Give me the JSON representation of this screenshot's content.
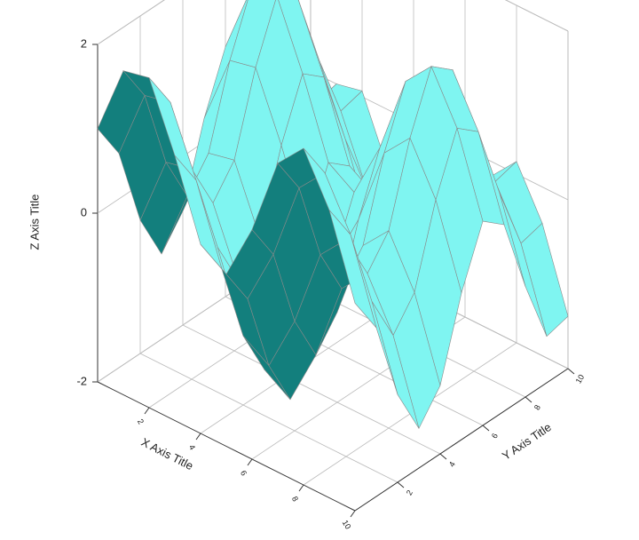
{
  "chart_data": {
    "type": "surface",
    "x_axis_title": "X Axis Title",
    "y_axis_title": "Y Axis Title",
    "z_axis_title": "Z Axis Title",
    "x": [
      0,
      1,
      2,
      3,
      4,
      5,
      6,
      7,
      8,
      9,
      10
    ],
    "y": [
      0,
      1,
      2,
      3,
      4,
      5,
      6,
      7,
      8,
      9,
      10
    ],
    "z": [
      [
        1,
        1.84,
        1.91,
        1.14,
        0.24,
        0.04,
        0.72,
        1.66,
        1.99,
        1.41,
        0.46
      ],
      [
        0.54,
        1.38,
        1.45,
        0.68,
        -0.22,
        -0.42,
        0.26,
        1.2,
        1.53,
        0.95,
        0
      ],
      [
        -0.42,
        0.42,
        0.49,
        -0.28,
        -1.18,
        -1.38,
        -0.7,
        0.24,
        0.57,
        -0.01,
        -0.96
      ],
      [
        -0.99,
        -0.15,
        -0.08,
        -0.85,
        -1.75,
        -1.95,
        -1.27,
        -0.33,
        0,
        -0.58,
        -1.53
      ],
      [
        -0.65,
        0.19,
        0.26,
        -0.51,
        -1.41,
        -1.61,
        -0.93,
        0.01,
        0.34,
        -0.24,
        -1.19
      ],
      [
        0.28,
        1.12,
        1.19,
        0.42,
        -0.48,
        -0.68,
        0,
        0.94,
        1.27,
        0.69,
        -0.26
      ],
      [
        0.96,
        1.8,
        1.87,
        1.1,
        0.2,
        0,
        0.68,
        1.62,
        1.95,
        1.37,
        0.42
      ],
      [
        0.75,
        1.59,
        1.66,
        0.89,
        -0.01,
        -0.21,
        0.47,
        1.41,
        1.74,
        1.16,
        0.21
      ],
      [
        -0.15,
        0.69,
        0.76,
        -0.01,
        -0.91,
        -1.11,
        -0.43,
        0.51,
        0.84,
        0.26,
        -0.69
      ],
      [
        -0.91,
        -0.07,
        0,
        -0.77,
        -1.67,
        -1.87,
        -1.19,
        -0.25,
        0.08,
        -0.5,
        -1.45
      ],
      [
        -0.84,
        0,
        0.07,
        -0.7,
        -1.6,
        -1.8,
        -1.12,
        -0.18,
        0.15,
        -0.43,
        -1.38
      ]
    ],
    "xlim": [
      0,
      10
    ],
    "ylim": [
      0,
      10
    ],
    "zlim": [
      -2,
      2
    ],
    "xticks": [
      2,
      4,
      6,
      8,
      10
    ],
    "yticks": [
      2,
      4,
      6,
      8,
      10
    ],
    "zticks": [
      -2,
      0,
      2
    ],
    "top_color": "#7ff5f1",
    "bottom_color": "#137f7d",
    "mesh_color": "#8a8a8a",
    "grid": true
  }
}
